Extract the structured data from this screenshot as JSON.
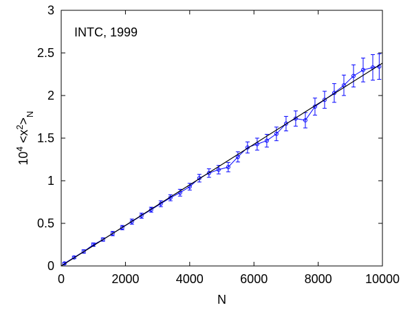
{
  "chart_data": {
    "type": "scatter",
    "annotation": "INTC, 1999",
    "xlabel": "N",
    "ylabel_parts": {
      "base": "10",
      "exp": "4",
      "mid": " <x",
      "exp2": "2",
      "mid2": ">",
      "sub": "N"
    },
    "xlim": [
      0,
      10000
    ],
    "ylim": [
      0,
      3
    ],
    "x_ticks": [
      "0",
      "2000",
      "4000",
      "6000",
      "8000",
      "10000"
    ],
    "y_ticks": [
      "0",
      "0.5",
      "1",
      "1.5",
      "2",
      "2.5",
      "3"
    ],
    "grid": false,
    "colors": {
      "data": "#0000ff",
      "fit": "#000000",
      "frame": "#000000"
    },
    "series": [
      {
        "style": "points-with-errorbars",
        "x": [
          100,
          400,
          700,
          1000,
          1300,
          1600,
          1900,
          2200,
          2500,
          2800,
          3100,
          3400,
          3700,
          4000,
          4300,
          4600,
          4900,
          5200,
          5500,
          5800,
          6100,
          6400,
          6700,
          7000,
          7300,
          7600,
          7900,
          8200,
          8500,
          8800,
          9100,
          9400,
          9700,
          9900
        ],
        "y": [
          0.03,
          0.1,
          0.17,
          0.25,
          0.31,
          0.38,
          0.45,
          0.52,
          0.59,
          0.66,
          0.73,
          0.8,
          0.86,
          0.93,
          1.03,
          1.09,
          1.13,
          1.16,
          1.28,
          1.39,
          1.43,
          1.47,
          1.55,
          1.67,
          1.73,
          1.71,
          1.87,
          1.95,
          2.03,
          2.12,
          2.23,
          2.3,
          2.33,
          2.34
        ],
        "err": [
          0.01,
          0.015,
          0.02,
          0.02,
          0.02,
          0.025,
          0.025,
          0.03,
          0.03,
          0.03,
          0.035,
          0.035,
          0.04,
          0.04,
          0.045,
          0.05,
          0.05,
          0.055,
          0.06,
          0.065,
          0.07,
          0.075,
          0.08,
          0.085,
          0.09,
          0.09,
          0.1,
          0.1,
          0.11,
          0.12,
          0.13,
          0.14,
          0.15,
          0.15
        ]
      },
      {
        "style": "line",
        "x": [
          0,
          10000
        ],
        "y": [
          0,
          2.38
        ]
      }
    ]
  }
}
